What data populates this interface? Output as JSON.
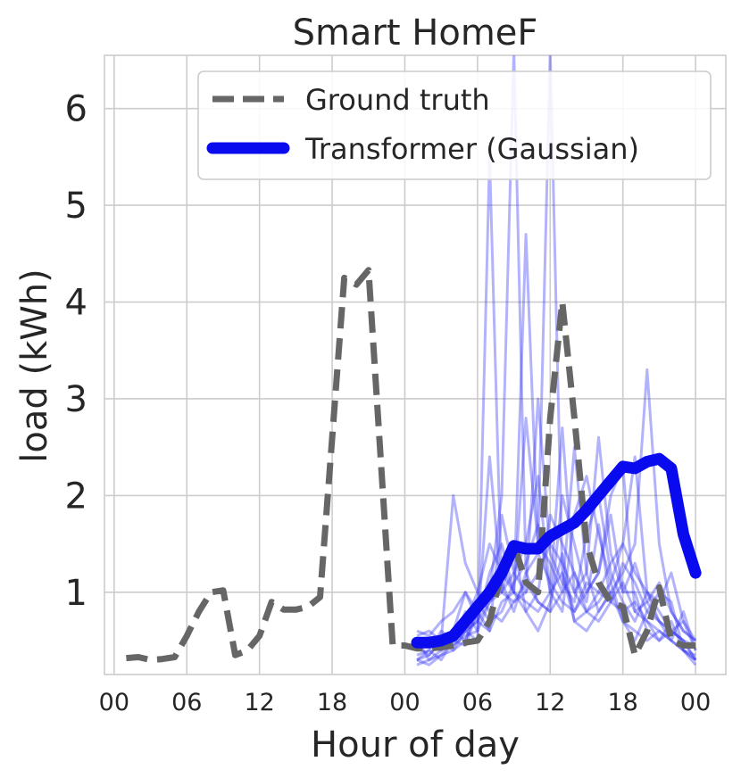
{
  "chart_data": {
    "type": "line",
    "title": "Smart HomeF",
    "xlabel": "Hour of day",
    "ylabel": "load (kWh)",
    "x_ticks": [
      "00",
      "06",
      "12",
      "18",
      "00",
      "06",
      "12",
      "18",
      "00"
    ],
    "x_tick_hours": [
      0,
      6,
      12,
      18,
      24,
      30,
      36,
      42,
      48
    ],
    "xlim": [
      -0.8,
      50.5
    ],
    "y_ticks": [
      1,
      2,
      3,
      4,
      5,
      6
    ],
    "ylim": [
      0.15,
      6.55
    ],
    "grid": true,
    "legend": "top-right",
    "colors": {
      "ground_truth": "#666666",
      "transformer": "#0a0aee",
      "samples": "#3838f5"
    },
    "series": [
      {
        "name": "Ground truth",
        "style": "dashed",
        "x": [
          1,
          2,
          3,
          4,
          5,
          6,
          7,
          8,
          9,
          10,
          11,
          12,
          13,
          14,
          15,
          16,
          17,
          18,
          19,
          20,
          21,
          22,
          23,
          24,
          25,
          26,
          27,
          28,
          29,
          30,
          31,
          32,
          33,
          34,
          35,
          36,
          37,
          38,
          39,
          40,
          41,
          42,
          43,
          44,
          45,
          46,
          47,
          48
        ],
        "y": [
          0.32,
          0.33,
          0.3,
          0.31,
          0.33,
          0.55,
          0.8,
          1.0,
          1.02,
          0.35,
          0.4,
          0.55,
          0.9,
          0.82,
          0.82,
          0.85,
          0.95,
          2.6,
          4.25,
          4.18,
          4.33,
          2.4,
          0.45,
          0.45,
          0.42,
          0.42,
          0.43,
          0.45,
          0.48,
          0.5,
          0.7,
          1.2,
          1.5,
          1.1,
          1.0,
          2.8,
          4.0,
          2.8,
          1.5,
          1.1,
          0.9,
          0.85,
          0.35,
          0.6,
          1.05,
          0.5,
          0.45,
          0.45
        ]
      },
      {
        "name": "Transformer (Gaussian)",
        "style": "solid",
        "x": [
          25,
          26,
          27,
          28,
          29,
          30,
          31,
          32,
          33,
          34,
          35,
          36,
          37,
          38,
          39,
          40,
          41,
          42,
          43,
          44,
          45,
          46,
          47,
          48
        ],
        "y": [
          0.48,
          0.48,
          0.5,
          0.55,
          0.7,
          0.85,
          1.0,
          1.2,
          1.48,
          1.45,
          1.45,
          1.58,
          1.65,
          1.72,
          1.85,
          2.0,
          2.15,
          2.3,
          2.28,
          2.35,
          2.38,
          2.28,
          1.6,
          1.2
        ]
      }
    ],
    "samples": {
      "x": [
        25,
        26,
        27,
        28,
        29,
        30,
        31,
        32,
        33,
        34,
        35,
        36,
        37,
        38,
        39,
        40,
        41,
        42,
        43,
        44,
        45,
        46,
        47,
        48
      ],
      "lines": [
        [
          0.6,
          0.55,
          0.7,
          0.8,
          1.0,
          0.7,
          1.2,
          1.5,
          1.0,
          2.8,
          1.5,
          6.6,
          1.2,
          0.8,
          1.0,
          1.2,
          2.0,
          2.3,
          0.8,
          0.7,
          0.5,
          0.6,
          0.5,
          0.3
        ],
        [
          0.3,
          0.35,
          0.5,
          0.4,
          0.6,
          0.5,
          5.5,
          1.0,
          1.5,
          0.8,
          0.6,
          0.9,
          1.4,
          0.7,
          0.8,
          0.9,
          1.1,
          1.5,
          2.4,
          1.0,
          0.7,
          0.6,
          0.7,
          0.4
        ],
        [
          0.4,
          0.5,
          0.45,
          0.6,
          0.5,
          0.8,
          1.0,
          2.0,
          6.6,
          1.2,
          0.9,
          0.8,
          2.0,
          1.5,
          1.0,
          1.2,
          1.8,
          1.0,
          1.3,
          0.9,
          1.1,
          0.8,
          0.6,
          0.5
        ],
        [
          0.35,
          0.4,
          0.6,
          0.5,
          0.7,
          1.0,
          1.5,
          1.2,
          1.0,
          4.7,
          1.5,
          1.3,
          1.0,
          2.5,
          1.2,
          0.8,
          1.0,
          1.2,
          1.5,
          3.3,
          1.5,
          0.8,
          0.6,
          0.5
        ],
        [
          0.5,
          0.3,
          0.4,
          0.5,
          0.8,
          0.6,
          0.9,
          1.0,
          1.2,
          1.0,
          3.0,
          1.4,
          1.1,
          0.9,
          1.6,
          2.0,
          1.2,
          0.9,
          0.7,
          1.0,
          0.8,
          0.6,
          0.5,
          0.3
        ],
        [
          0.25,
          0.3,
          0.35,
          0.4,
          0.5,
          0.9,
          0.7,
          0.8,
          1.1,
          1.3,
          1.7,
          1.0,
          0.8,
          1.8,
          2.2,
          1.6,
          1.1,
          0.7,
          0.5,
          0.8,
          1.0,
          0.9,
          0.4,
          0.25
        ],
        [
          0.55,
          0.6,
          0.5,
          2.0,
          1.3,
          1.0,
          0.8,
          0.7,
          0.9,
          1.1,
          0.9,
          0.8,
          1.0,
          1.2,
          0.9,
          1.7,
          0.9,
          0.8,
          0.9,
          0.7,
          0.6,
          0.5,
          0.4,
          0.35
        ],
        [
          0.3,
          0.4,
          0.3,
          0.5,
          0.6,
          0.7,
          0.6,
          1.8,
          1.2,
          1.5,
          2.2,
          1.0,
          2.7,
          1.0,
          0.8,
          0.7,
          0.9,
          1.1,
          0.8,
          0.9,
          0.7,
          0.5,
          0.8,
          0.4
        ],
        [
          0.45,
          0.35,
          0.5,
          0.45,
          0.55,
          0.6,
          2.4,
          1.0,
          0.9,
          1.0,
          1.2,
          1.5,
          1.3,
          1.0,
          1.2,
          2.6,
          1.4,
          1.0,
          1.0,
          0.6,
          0.5,
          0.7,
          0.4,
          0.3
        ],
        [
          0.5,
          0.45,
          0.4,
          0.6,
          1.0,
          0.8,
          1.1,
          1.3,
          1.0,
          0.8,
          1.0,
          1.8,
          1.5,
          1.2,
          0.8,
          1.0,
          1.3,
          1.5,
          1.2,
          1.0,
          0.9,
          1.2,
          0.7,
          0.5
        ],
        [
          0.4,
          0.5,
          0.55,
          0.45,
          0.6,
          0.7,
          0.9,
          1.1,
          0.8,
          1.2,
          1.4,
          1.1,
          0.9,
          0.8,
          1.1,
          1.0,
          0.9,
          1.3,
          1.1,
          0.8,
          0.7,
          0.6,
          0.5,
          0.45
        ],
        [
          0.3,
          0.25,
          0.35,
          0.5,
          0.45,
          0.8,
          0.6,
          0.9,
          1.0,
          0.9,
          0.8,
          1.0,
          1.2,
          0.7,
          0.6,
          0.8,
          1.0,
          0.7,
          0.6,
          0.5,
          0.6,
          0.5,
          0.4,
          0.3
        ]
      ]
    }
  }
}
